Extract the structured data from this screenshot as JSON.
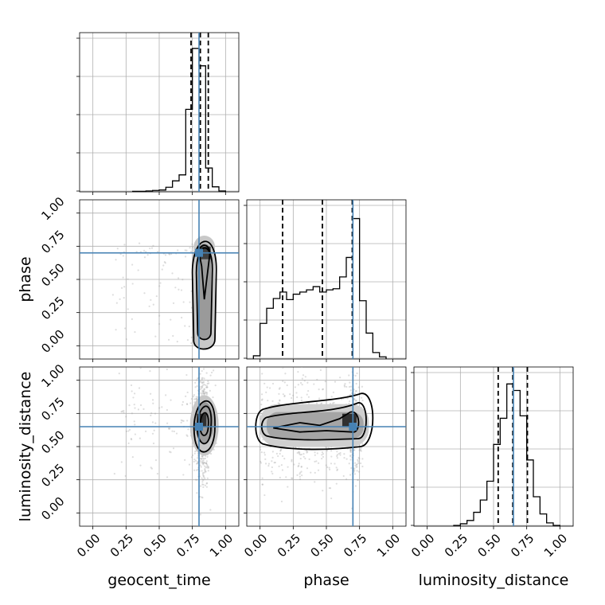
{
  "chart_data": {
    "type": "corner",
    "parameters": [
      "geocent_time",
      "phase",
      "luminosity_distance"
    ],
    "tick_labels": [
      "0.00",
      "0.25",
      "0.50",
      "0.75",
      "1.00"
    ],
    "ticks": [
      0,
      0.25,
      0.5,
      0.75,
      1.0
    ],
    "range": [
      -0.1,
      1.1
    ],
    "truths": {
      "geocent_time": 0.8,
      "phase": 0.7,
      "luminosity_distance": 0.65
    },
    "quantiles": {
      "geocent_time": [
        0.74,
        0.81,
        0.87
      ],
      "phase": [
        0.17,
        0.47,
        0.695
      ],
      "luminosity_distance": [
        0.535,
        0.645,
        0.755
      ]
    },
    "histograms": {
      "geocent_time": {
        "edges": [
          0.3,
          0.35,
          0.4,
          0.45,
          0.5,
          0.55,
          0.6,
          0.65,
          0.7,
          0.75,
          0.8,
          0.85,
          0.9,
          0.95,
          1.0
        ],
        "counts": [
          1,
          1,
          2,
          3,
          4,
          10,
          24,
          37,
          180,
          313,
          275,
          52,
          11,
          2
        ],
        "ymax": 330
      },
      "phase": {
        "edges": [
          -0.05,
          0.0,
          0.05,
          0.1,
          0.15,
          0.2,
          0.25,
          0.3,
          0.35,
          0.4,
          0.45,
          0.5,
          0.55,
          0.6,
          0.65,
          0.7,
          0.75,
          0.8,
          0.85,
          0.9,
          0.95
        ],
        "counts": [
          3,
          33,
          47,
          56,
          62,
          55,
          60,
          62,
          64,
          67,
          62,
          64,
          65,
          76,
          94,
          130,
          54,
          24,
          6,
          2
        ],
        "ymax": 140
      },
      "luminosity_distance": {
        "edges": [
          0.2,
          0.25,
          0.3,
          0.35,
          0.4,
          0.45,
          0.5,
          0.55,
          0.6,
          0.65,
          0.7,
          0.75,
          0.8,
          0.85,
          0.9,
          0.95,
          1.0
        ],
        "counts": [
          1,
          3,
          7,
          17,
          32,
          55,
          100,
          132,
          174,
          166,
          135,
          81,
          36,
          15,
          4,
          1
        ],
        "ymax": 185
      }
    },
    "panels_2d": [
      {
        "x": "geocent_time",
        "y": "phase",
        "center": [
          0.84,
          0.7
        ]
      },
      {
        "x": "geocent_time",
        "y": "luminosity_distance",
        "center": [
          0.82,
          0.7
        ]
      },
      {
        "x": "phase",
        "y": "luminosity_distance",
        "center": [
          0.68,
          0.7
        ]
      }
    ],
    "colors": {
      "truth": "#4682b4",
      "contour": "#000000",
      "points": "#a0a0a0",
      "grid": "#b0b0b0"
    }
  }
}
